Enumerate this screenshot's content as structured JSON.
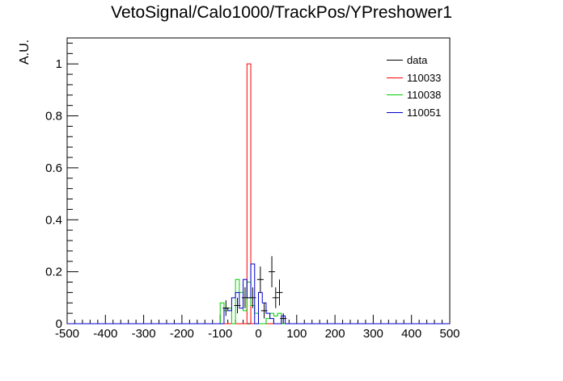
{
  "chart_data": {
    "type": "histogram",
    "title": "VetoSignal/Calo1000/TrackPos/YPreshower1",
    "xlabel": "",
    "ylabel": "A.U.",
    "xlim": [
      -500,
      500
    ],
    "ylim": [
      0,
      1.1
    ],
    "bin_width": 10,
    "x_ticks": [
      "-500",
      "-400",
      "-300",
      "-200",
      "-100",
      "0",
      "100",
      "200",
      "300",
      "400",
      "500"
    ],
    "y_ticks": [
      "0",
      "0.2",
      "0.4",
      "0.6",
      "0.8",
      "1"
    ],
    "legend_position": "top-right",
    "series": [
      {
        "name": "data",
        "color": "#000000",
        "style": "points",
        "points": [
          {
            "x": -85,
            "y": 0.06,
            "err": 0.03
          },
          {
            "x": -55,
            "y": 0.07,
            "err": 0.03
          },
          {
            "x": -35,
            "y": 0.1,
            "err": 0.04
          },
          {
            "x": -15,
            "y": 0.1,
            "err": 0.04
          },
          {
            "x": 5,
            "y": 0.17,
            "err": 0.05
          },
          {
            "x": 15,
            "y": 0.05,
            "err": 0.03
          },
          {
            "x": 35,
            "y": 0.2,
            "err": 0.06
          },
          {
            "x": 45,
            "y": 0.1,
            "err": 0.04
          },
          {
            "x": 55,
            "y": 0.12,
            "err": 0.05
          },
          {
            "x": 65,
            "y": 0.02,
            "err": 0.02
          }
        ]
      },
      {
        "name": "110033",
        "color": "#ff0000",
        "style": "step",
        "bins": [
          {
            "x": -30,
            "y": 1.0
          }
        ]
      },
      {
        "name": "110038",
        "color": "#00cc00",
        "style": "step",
        "bins": [
          {
            "x": -100,
            "y": 0.08
          },
          {
            "x": -90,
            "y": 0.05
          },
          {
            "x": -80,
            "y": 0.06
          },
          {
            "x": -60,
            "y": 0.17
          },
          {
            "x": -50,
            "y": 0.12
          },
          {
            "x": -40,
            "y": 0.05
          },
          {
            "x": -30,
            "y": 0.16
          },
          {
            "x": -20,
            "y": 0.07
          },
          {
            "x": -10,
            "y": 0.04
          },
          {
            "x": 20,
            "y": 0.02
          },
          {
            "x": 30,
            "y": 0.04
          },
          {
            "x": 40,
            "y": 0.03
          },
          {
            "x": 50,
            "y": 0.04
          }
        ]
      },
      {
        "name": "110051",
        "color": "#0000cc",
        "style": "step",
        "bins": [
          {
            "x": -90,
            "y": 0.06
          },
          {
            "x": -80,
            "y": 0.05
          },
          {
            "x": -70,
            "y": 0.1
          },
          {
            "x": -60,
            "y": 0.12
          },
          {
            "x": -50,
            "y": 0.06
          },
          {
            "x": -40,
            "y": 0.17
          },
          {
            "x": -30,
            "y": 0.1
          },
          {
            "x": -20,
            "y": 0.23
          },
          {
            "x": 0,
            "y": 0.12
          },
          {
            "x": 10,
            "y": 0.08
          },
          {
            "x": 20,
            "y": 0.04
          },
          {
            "x": 30,
            "y": 0.02
          },
          {
            "x": 60,
            "y": 0.03
          }
        ]
      }
    ]
  }
}
